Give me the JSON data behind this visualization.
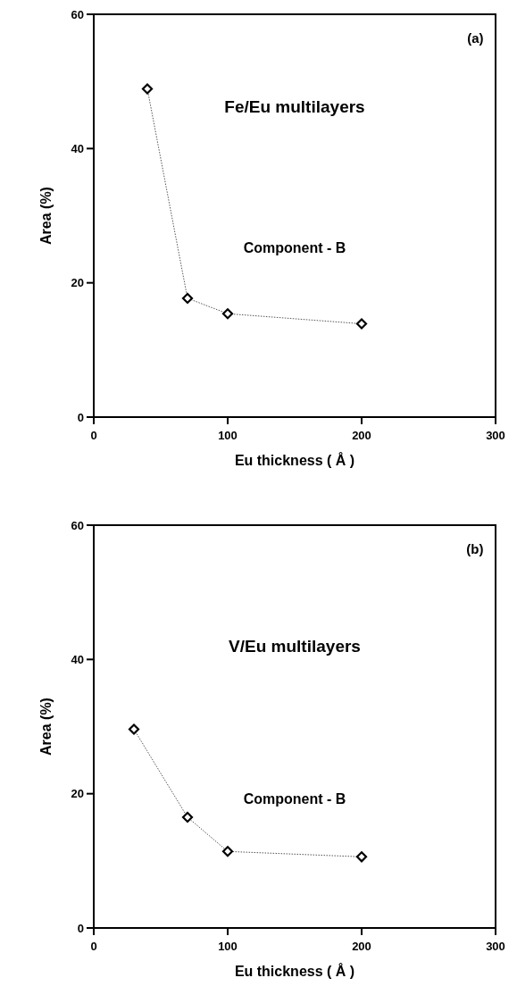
{
  "chart_data": [
    {
      "type": "line",
      "xlabel": "Eu thickness ( Å )",
      "ylabel": "Area (%)",
      "annotations": [
        "(a)",
        "Fe/Eu multilayers",
        "Component - B"
      ],
      "x": [
        40,
        70,
        100,
        200
      ],
      "series": [
        {
          "color": "#555555",
          "values": [
            48.9,
            17.7,
            15.4,
            13.9
          ]
        }
      ],
      "xlim": [
        0,
        300
      ],
      "xticks": [
        0,
        100,
        200,
        300
      ],
      "ylim": [
        0,
        60
      ],
      "yticks": [
        0,
        20,
        40,
        60
      ],
      "marker": "diamond",
      "line_style": "dotted",
      "grid": false
    },
    {
      "type": "line",
      "xlabel": "Eu thickness ( Å )",
      "ylabel": "Area (%)",
      "annotations": [
        "(b)",
        "V/Eu multilayers",
        "Component - B"
      ],
      "x": [
        30,
        70,
        100,
        200
      ],
      "series": [
        {
          "color": "#555555",
          "values": [
            29.6,
            16.5,
            11.4,
            10.6
          ]
        }
      ],
      "xlim": [
        0,
        300
      ],
      "xticks": [
        0,
        100,
        200,
        300
      ],
      "ylim": [
        0,
        60
      ],
      "yticks": [
        0,
        20,
        40,
        60
      ],
      "marker": "diamond",
      "line_style": "dotted",
      "grid": false
    }
  ]
}
